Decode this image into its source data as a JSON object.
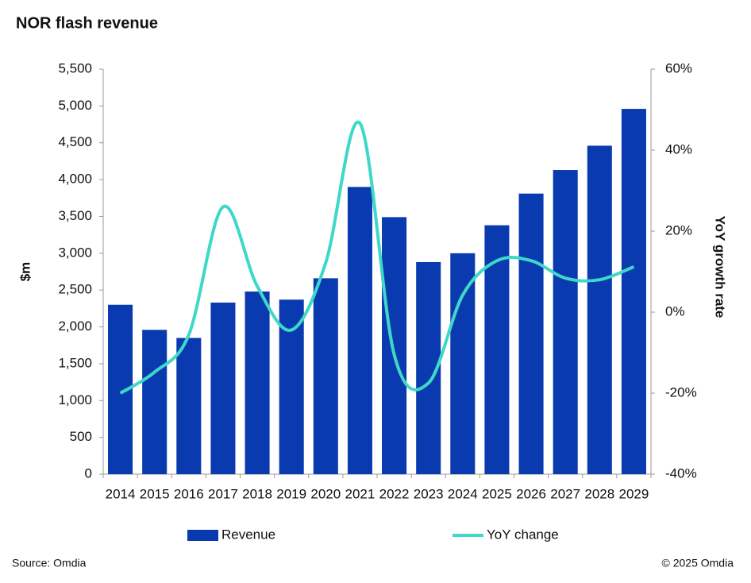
{
  "chart_data": {
    "type": "bar-line",
    "title": "NOR flash revenue",
    "categories": [
      "2014",
      "2015",
      "2016",
      "2017",
      "2018",
      "2019",
      "2020",
      "2021",
      "2022",
      "2023",
      "2024",
      "2025",
      "2026",
      "2027",
      "2028",
      "2029"
    ],
    "series": [
      {
        "name": "Revenue",
        "type": "bar",
        "color": "#0a3ab0",
        "values": [
          2300,
          1960,
          1850,
          2330,
          2480,
          2370,
          2660,
          3900,
          3490,
          2880,
          3000,
          3380,
          3810,
          4130,
          4460,
          4960
        ]
      },
      {
        "name": "YoY change",
        "type": "line",
        "axis": "y2",
        "color": "#3ed8c9",
        "values": [
          -20,
          -14.8,
          -5.6,
          26,
          6.4,
          -4.4,
          12.2,
          46.6,
          -10.5,
          -17.5,
          4.2,
          12.7,
          12.7,
          8.4,
          8,
          11.2
        ]
      }
    ],
    "ylabel": "$m",
    "y2label": "YoY growth rate",
    "ylim": [
      0,
      5500
    ],
    "yticks": [
      0,
      500,
      {
        "value": 1000,
        "label": "1,000"
      },
      {
        "value": 1500,
        "label": "1,500"
      },
      {
        "value": 2000,
        "label": "2,000"
      },
      {
        "value": 2500,
        "label": "2,500"
      },
      {
        "value": 3000,
        "label": "3,000"
      },
      {
        "value": 3500,
        "label": "3,500"
      },
      {
        "value": 4000,
        "label": "4,000"
      },
      {
        "value": 4500,
        "label": "4,500"
      },
      {
        "value": 5000,
        "label": "5,000"
      },
      {
        "value": 5500,
        "label": "5,500"
      }
    ],
    "y2lim": [
      -40,
      60
    ],
    "y2ticks": [
      {
        "value": -40,
        "label": "-40%"
      },
      {
        "value": -20,
        "label": "-20%"
      },
      {
        "value": 0,
        "label": "0%"
      },
      {
        "value": 20,
        "label": "20%"
      },
      {
        "value": 40,
        "label": "40%"
      },
      {
        "value": 60,
        "label": "60%"
      }
    ],
    "source": "Source: Omdia",
    "copyright": "© 2025 Omdia"
  }
}
